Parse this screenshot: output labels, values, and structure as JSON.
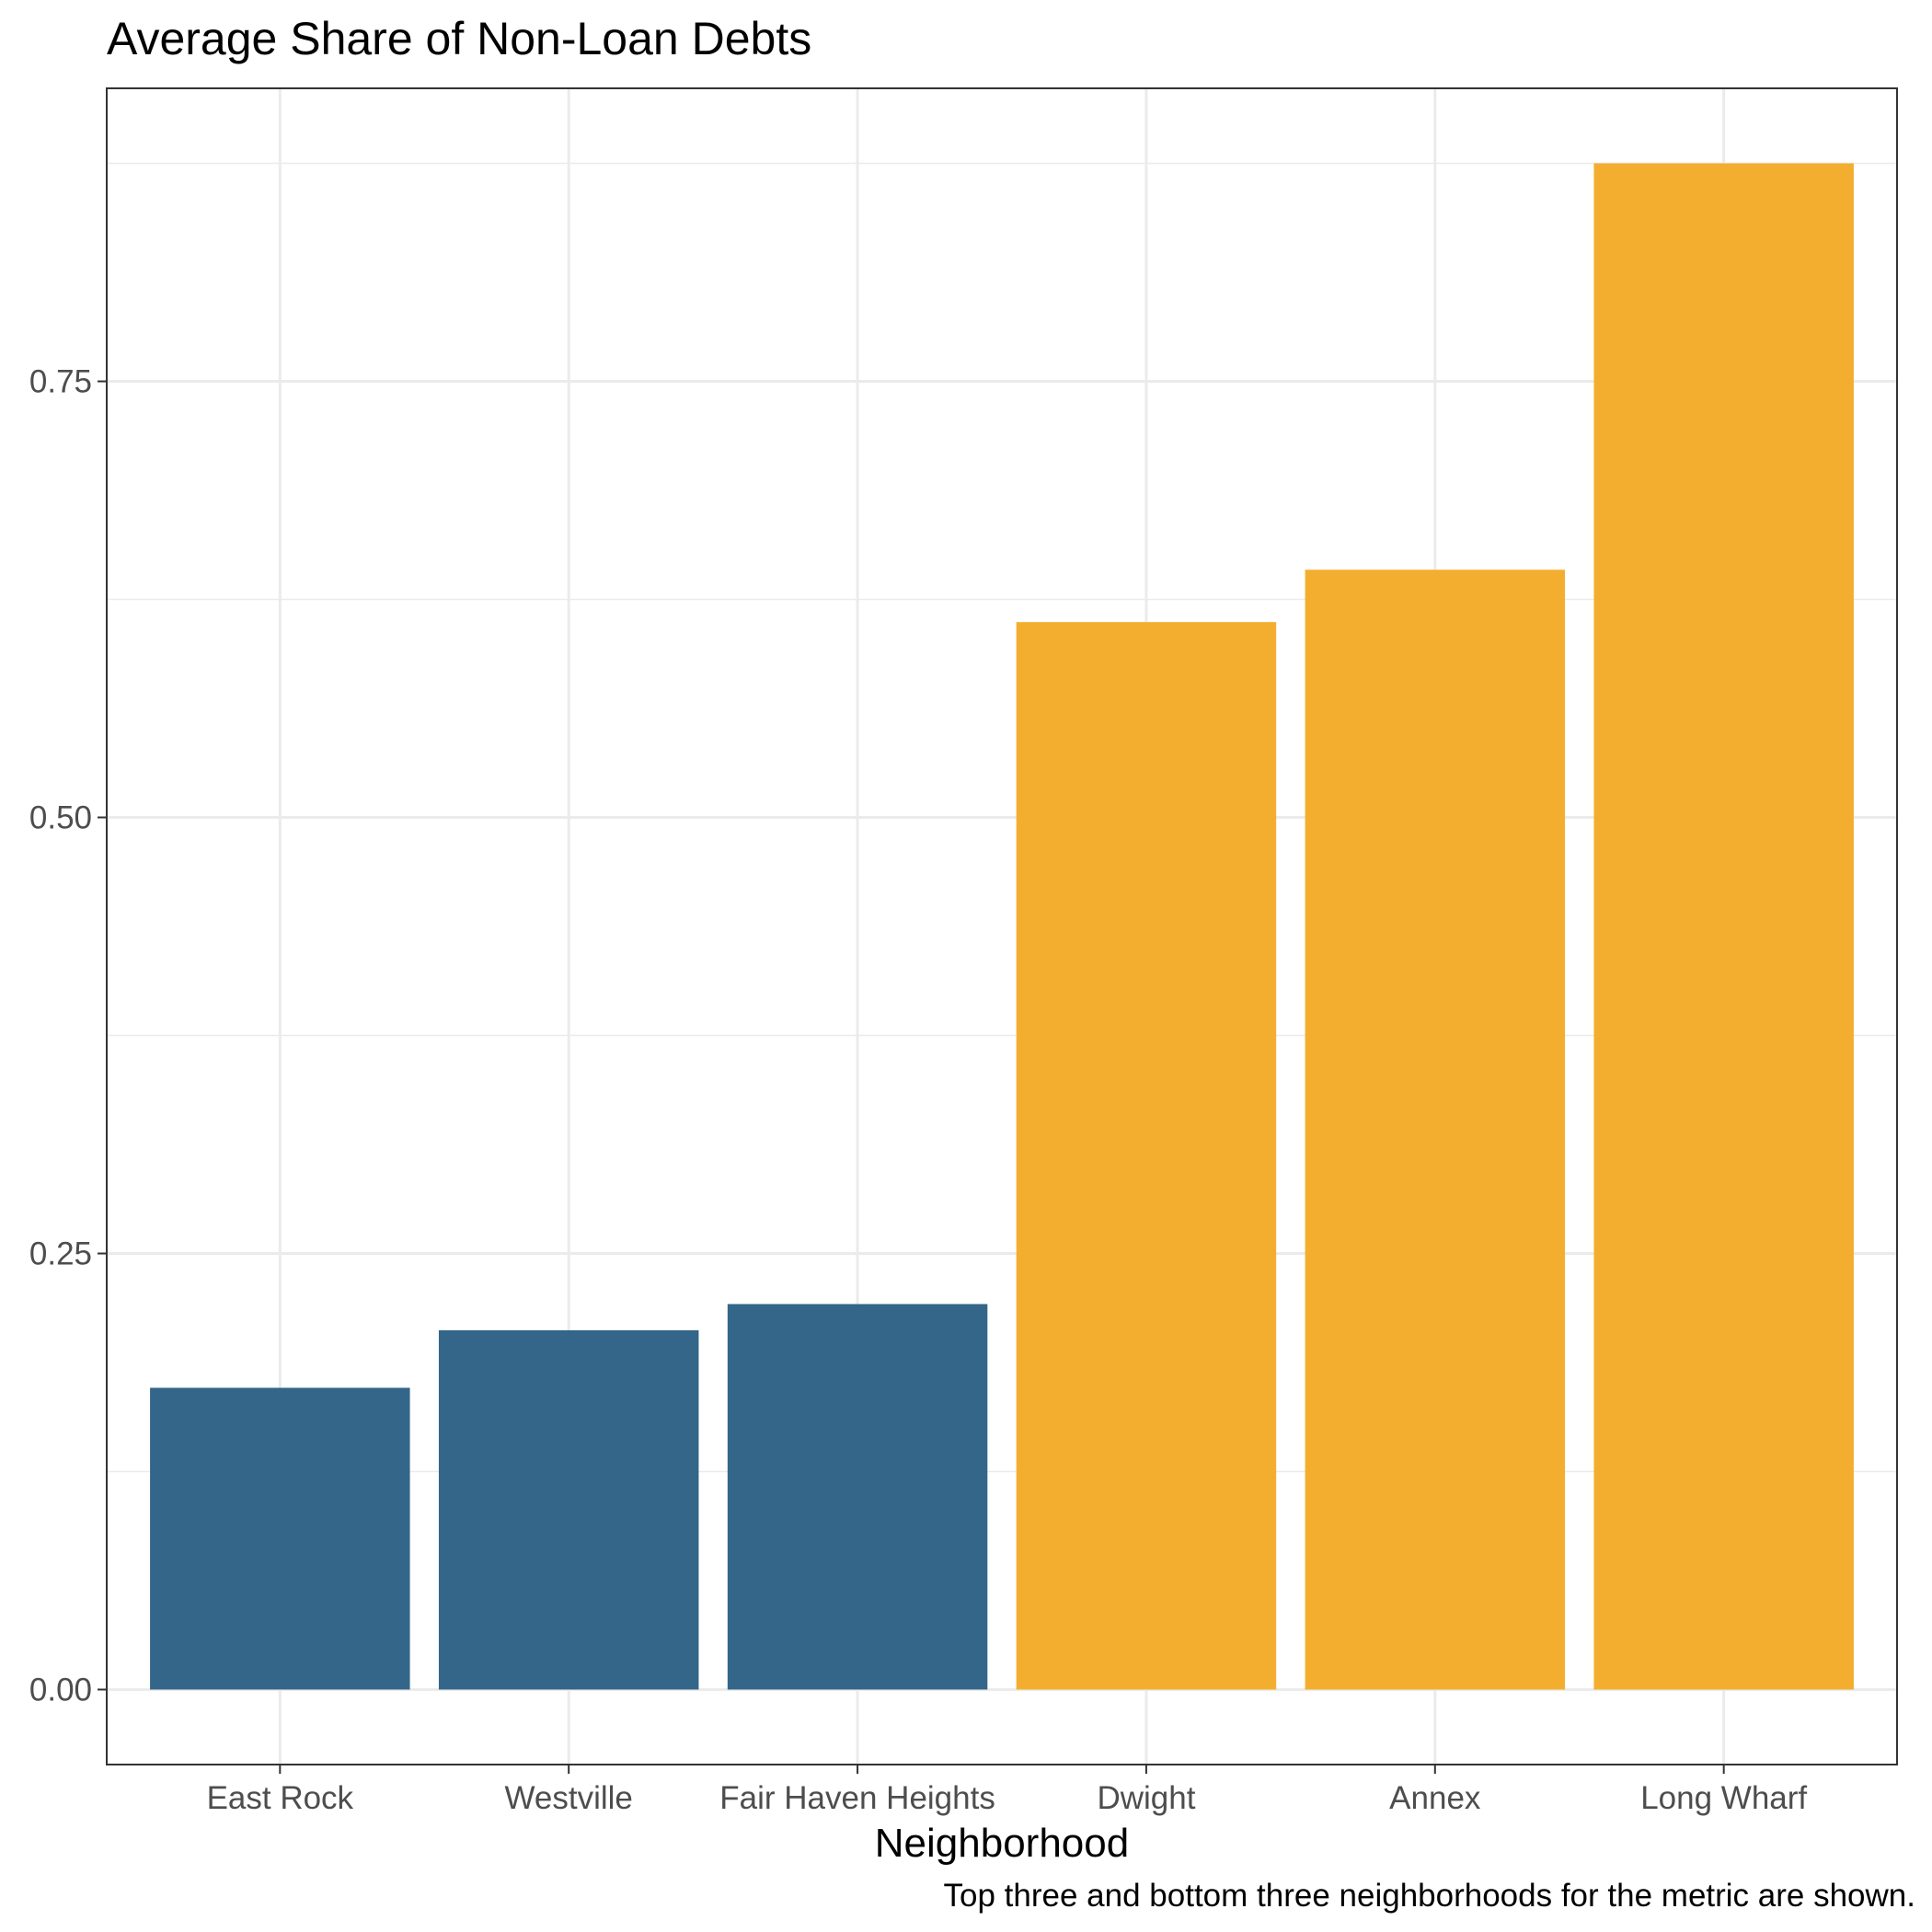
{
  "chart_data": {
    "type": "bar",
    "title": "Average Share of Non-Loan Debts",
    "xlabel": "Neighborhood",
    "ylabel": "",
    "caption": "Top three and bottom three neighborhoods for the metric are shown.",
    "categories": [
      "East Rock",
      "Westville",
      "Fair Haven Heights",
      "Dwight",
      "Annex",
      "Long Wharf"
    ],
    "values": [
      0.173,
      0.206,
      0.221,
      0.612,
      0.642,
      0.875
    ],
    "groups": [
      "bottom",
      "bottom",
      "bottom",
      "top",
      "top",
      "top"
    ],
    "colors": {
      "bottom": "#336689",
      "top": "#F4AE2F"
    },
    "ylim": [
      -0.043,
      0.918
    ],
    "yticks": [
      0.0,
      0.25,
      0.5,
      0.75
    ],
    "ytick_labels": [
      "0.00",
      "0.25",
      "0.50",
      "0.75"
    ],
    "grid": true,
    "legend": "none"
  }
}
